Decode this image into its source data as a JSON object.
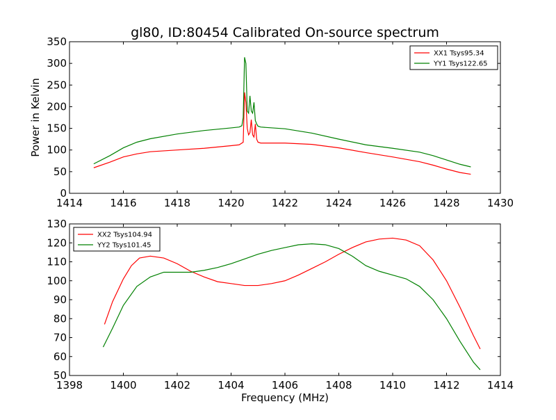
{
  "chart_data": [
    {
      "type": "line",
      "title": "gl80, ID:80454 Calibrated On-source spectrum",
      "xlabel": "",
      "ylabel": "Power in Kelvin",
      "xlim": [
        1414,
        1430
      ],
      "ylim": [
        0,
        350
      ],
      "xticks": [
        "1414",
        "1416",
        "1418",
        "1420",
        "1422",
        "1424",
        "1426",
        "1428",
        "1430"
      ],
      "yticks": [
        "0",
        "50",
        "100",
        "150",
        "200",
        "250",
        "300",
        "350"
      ],
      "legend_placement": "top-right",
      "grid": false,
      "series": [
        {
          "name": "XX1 Tsys95.34",
          "color": "#ff0000",
          "x": [
            1414.9,
            1415.5,
            1416.0,
            1416.5,
            1417.0,
            1418.0,
            1419.0,
            1419.5,
            1420.0,
            1420.3,
            1420.45,
            1420.5,
            1420.55,
            1420.6,
            1420.65,
            1420.7,
            1420.75,
            1420.8,
            1420.85,
            1420.9,
            1420.95,
            1421.0,
            1421.1,
            1421.3,
            1422.0,
            1423.0,
            1424.0,
            1425.0,
            1426.0,
            1427.0,
            1427.5,
            1428.0,
            1428.5,
            1428.9
          ],
          "y": [
            59,
            72,
            84,
            91,
            96,
            100,
            104,
            107,
            110,
            112,
            118,
            233,
            210,
            150,
            135,
            140,
            170,
            135,
            130,
            160,
            125,
            118,
            116,
            116,
            116,
            113,
            105,
            94,
            84,
            73,
            65,
            56,
            48,
            44
          ]
        },
        {
          "name": "YY1 Tsys122.65",
          "color": "#008000",
          "x": [
            1414.9,
            1415.5,
            1416.0,
            1416.5,
            1417.0,
            1418.0,
            1419.0,
            1419.5,
            1420.0,
            1420.3,
            1420.4,
            1420.45,
            1420.5,
            1420.55,
            1420.6,
            1420.65,
            1420.7,
            1420.75,
            1420.8,
            1420.85,
            1420.9,
            1420.95,
            1421.0,
            1421.1,
            1421.3,
            1422.0,
            1423.0,
            1424.0,
            1425.0,
            1426.0,
            1427.0,
            1427.5,
            1428.0,
            1428.5,
            1428.9
          ],
          "y": [
            68,
            87,
            105,
            118,
            126,
            137,
            145,
            148,
            151,
            153,
            156,
            175,
            314,
            300,
            190,
            185,
            225,
            190,
            185,
            210,
            168,
            160,
            155,
            153,
            152,
            149,
            139,
            125,
            112,
            104,
            95,
            87,
            77,
            67,
            61
          ]
        }
      ]
    },
    {
      "type": "line",
      "title": "",
      "xlabel": "Frequency (MHz)",
      "ylabel": "",
      "xlim": [
        1398,
        1414
      ],
      "ylim": [
        50,
        130
      ],
      "xticks": [
        "1398",
        "1400",
        "1402",
        "1404",
        "1406",
        "1408",
        "1410",
        "1412",
        "1414"
      ],
      "yticks": [
        "50",
        "60",
        "70",
        "80",
        "90",
        "100",
        "110",
        "120",
        "130"
      ],
      "legend_placement": "top-left",
      "grid": false,
      "series": [
        {
          "name": "XX2 Tsys104.94",
          "color": "#ff0000",
          "x": [
            1399.3,
            1399.6,
            1400.0,
            1400.3,
            1400.6,
            1401.0,
            1401.5,
            1402.0,
            1402.5,
            1403.0,
            1403.5,
            1404.0,
            1404.5,
            1405.0,
            1405.5,
            1406.0,
            1406.5,
            1407.0,
            1407.5,
            1408.0,
            1408.5,
            1409.0,
            1409.5,
            1410.0,
            1410.5,
            1411.0,
            1411.5,
            1412.0,
            1412.5,
            1413.0,
            1413.25
          ],
          "y": [
            77,
            89,
            101,
            108,
            112,
            113,
            112,
            109,
            105,
            102,
            99.5,
            98.5,
            97.5,
            97.5,
            98.5,
            100,
            103,
            106.5,
            110,
            114,
            117.5,
            120.5,
            122,
            122.5,
            121.5,
            118.5,
            111,
            100,
            86,
            71,
            64
          ]
        },
        {
          "name": "YY2 Tsys101.45",
          "color": "#008000",
          "x": [
            1399.25,
            1399.6,
            1400.0,
            1400.5,
            1401.0,
            1401.5,
            1402.0,
            1402.5,
            1403.0,
            1403.5,
            1404.0,
            1404.5,
            1405.0,
            1405.5,
            1406.0,
            1406.5,
            1407.0,
            1407.5,
            1408.0,
            1408.5,
            1409.0,
            1409.5,
            1410.0,
            1410.5,
            1411.0,
            1411.5,
            1412.0,
            1412.5,
            1413.0,
            1413.25
          ],
          "y": [
            65,
            75,
            87,
            97,
            102,
            104.5,
            104.5,
            104.5,
            105.5,
            107,
            109,
            111.5,
            114,
            116,
            117.5,
            119,
            119.5,
            119,
            117,
            113,
            108,
            105,
            103,
            101,
            97,
            90,
            80,
            68,
            57,
            53
          ]
        }
      ]
    }
  ]
}
